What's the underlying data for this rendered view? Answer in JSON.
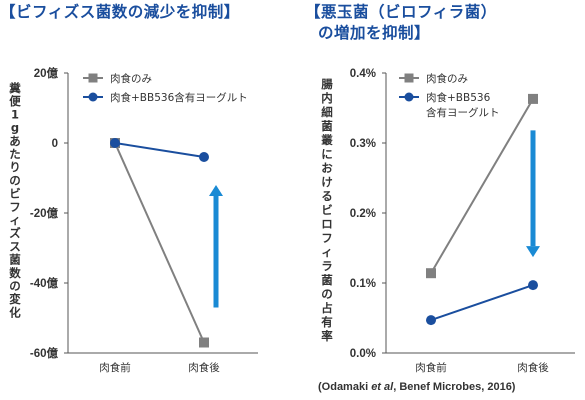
{
  "titles": {
    "left": "【ビフィズス菌数の減少を抑制】",
    "right_line1": "【悪玉菌（ビロフィラ菌）",
    "right_line2": "の増加を抑制】"
  },
  "citation": {
    "prefix": "(Odamaki ",
    "italic": "et al",
    "suffix": ", Benef Microbes, 2016)"
  },
  "colors": {
    "meat": "#808080",
    "bb536": "#1a4e9e",
    "arrow": "#1a8ad4"
  },
  "chart_data": [
    {
      "type": "line",
      "ylabel": "糞便1gあたりのビフィズス菌数の変化",
      "categories": [
        "肉食前",
        "肉食後"
      ],
      "yticks": [
        20,
        0,
        -20,
        -40,
        -60
      ],
      "ytick_labels": [
        "20億",
        "0",
        "-20億",
        "-40億",
        "-60億"
      ],
      "ylim": [
        -60,
        20
      ],
      "legend_position": "top-right",
      "series": [
        {
          "name": "肉食のみ",
          "marker": "square",
          "values": [
            0,
            -57
          ]
        },
        {
          "name": "肉食+BB536含有ヨーグルト",
          "marker": "circle",
          "values": [
            0,
            -4
          ]
        }
      ],
      "annotation": {
        "type": "arrow",
        "direction": "up",
        "from": -47,
        "to": -12
      }
    },
    {
      "type": "line",
      "ylabel": "腸内細菌叢におけるビロフィラ菌の占有率",
      "categories": [
        "肉食前",
        "肉食後"
      ],
      "yticks": [
        0.4,
        0.3,
        0.2,
        0.1,
        0.0
      ],
      "ytick_labels": [
        "0.4%",
        "0.3%",
        "0.2%",
        "0.1%",
        "0.0%"
      ],
      "ylim": [
        0,
        0.4
      ],
      "legend_position": "top-right",
      "series": [
        {
          "name": "肉食のみ",
          "marker": "square",
          "values": [
            0.114,
            0.363
          ]
        },
        {
          "name_lines": [
            "肉食+BB536",
            "含有ヨーグルト"
          ],
          "marker": "circle",
          "values": [
            0.047,
            0.097
          ]
        }
      ],
      "annotation": {
        "type": "arrow",
        "direction": "down",
        "from": 0.318,
        "to": 0.137
      }
    }
  ]
}
